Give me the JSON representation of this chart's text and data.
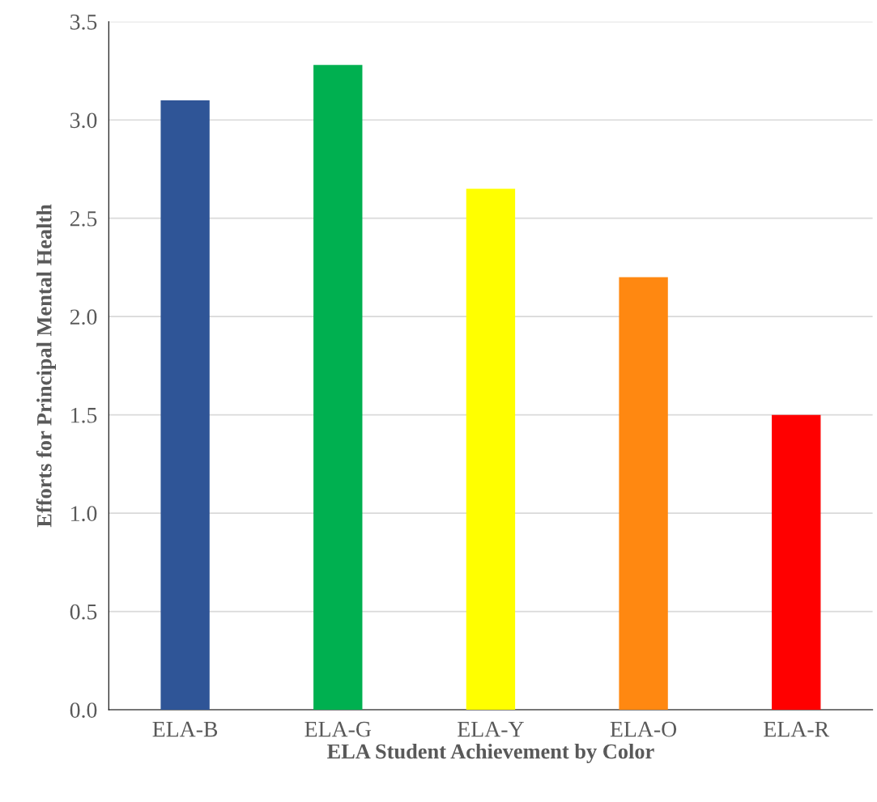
{
  "chart_data": {
    "type": "bar",
    "xlabel": "ELA Student Achievement by Color",
    "ylabel": "Efforts for Principal Mental Health",
    "categories": [
      "ELA-B",
      "ELA-G",
      "ELA-Y",
      "ELA-O",
      "ELA-R"
    ],
    "values": [
      3.1,
      3.28,
      2.65,
      2.2,
      1.5
    ],
    "colors": [
      "#2f5597",
      "#00b050",
      "#ffff00",
      "#ff8811",
      "#ff0000"
    ],
    "ylim": [
      0,
      3.5
    ],
    "yticks": [
      {
        "value": 0,
        "label": "0.0"
      },
      {
        "value": 0.5,
        "label": "0.5"
      },
      {
        "value": 1,
        "label": "1.0"
      },
      {
        "value": 1.5,
        "label": "1.5"
      },
      {
        "value": 2,
        "label": "2.0"
      },
      {
        "value": 2.5,
        "label": "2.5"
      },
      {
        "value": 3,
        "label": "3.0"
      },
      {
        "value": 3.5,
        "label": "3.5"
      }
    ],
    "grid": "y",
    "legend": false
  }
}
